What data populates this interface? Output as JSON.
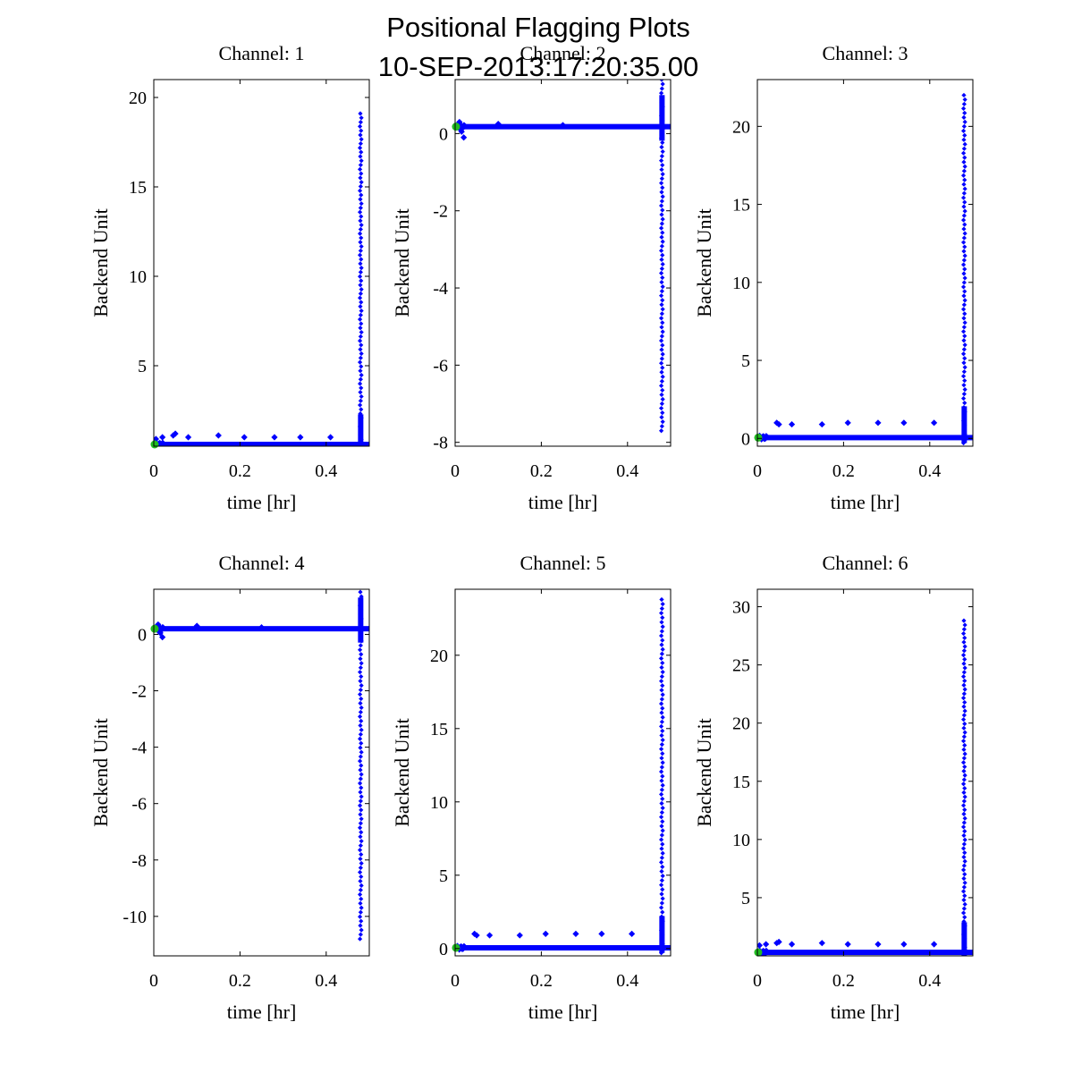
{
  "figure": {
    "title_line1": "Positional Flagging Plots",
    "title_line2": "10-SEP-2013:17:20:35.00"
  },
  "colors": {
    "data": "#0000ff",
    "start_marker": "#22bb22",
    "axes": "#000000"
  },
  "chart_data": [
    {
      "type": "scatter",
      "title": "Channel: 1",
      "xlabel": "time [hr]",
      "ylabel": "Backend Unit",
      "xlim": [
        0,
        0.5
      ],
      "ylim": [
        0.5,
        21
      ],
      "xticks": [
        0,
        0.2,
        0.4
      ],
      "xtick_labels": [
        "0",
        "0.2",
        "0.4"
      ],
      "yticks": [
        5,
        10,
        15,
        20
      ],
      "ytick_labels": [
        "5",
        "10",
        "15",
        "20"
      ],
      "baseline": 0.6,
      "spike_x": 0.48,
      "spike_min": 0.4,
      "spike_max": 19.1,
      "outliers": [
        [
          0.005,
          0.9
        ],
        [
          0.02,
          1.0
        ],
        [
          0.045,
          1.1
        ],
        [
          0.05,
          1.2
        ],
        [
          0.08,
          1.0
        ],
        [
          0.15,
          1.1
        ],
        [
          0.21,
          1.0
        ],
        [
          0.28,
          1.0
        ],
        [
          0.34,
          1.0
        ],
        [
          0.41,
          1.0
        ]
      ]
    },
    {
      "type": "scatter",
      "title": "Channel: 2",
      "xlabel": "time [hr]",
      "ylabel": "Backend Unit",
      "xlim": [
        0,
        0.5
      ],
      "ylim": [
        -8.1,
        1.4
      ],
      "xticks": [
        0,
        0.2,
        0.4
      ],
      "xtick_labels": [
        "0",
        "0.2",
        "0.4"
      ],
      "yticks": [
        0,
        -2,
        -4,
        -6,
        -8
      ],
      "ytick_labels": [
        "0",
        "-2",
        "-4",
        "-6",
        "-8"
      ],
      "baseline": 0.18,
      "spike_x": 0.48,
      "spike_min": -7.7,
      "spike_max": 1.4,
      "outliers": [
        [
          0.01,
          0.3
        ],
        [
          0.015,
          0.05
        ],
        [
          0.02,
          -0.1
        ],
        [
          0.1,
          0.25
        ],
        [
          0.25,
          0.22
        ]
      ]
    },
    {
      "type": "scatter",
      "title": "Channel: 3",
      "xlabel": "time [hr]",
      "ylabel": "Backend Unit",
      "xlim": [
        0,
        0.5
      ],
      "ylim": [
        -0.5,
        23
      ],
      "xticks": [
        0,
        0.2,
        0.4
      ],
      "xtick_labels": [
        "0",
        "0.2",
        "0.4"
      ],
      "yticks": [
        0,
        5,
        10,
        15,
        20
      ],
      "ytick_labels": [
        "0",
        "5",
        "10",
        "15",
        "20"
      ],
      "baseline": 0.05,
      "spike_x": 0.48,
      "spike_min": -0.3,
      "spike_max": 22.0,
      "outliers": [
        [
          0.045,
          1.0
        ],
        [
          0.05,
          0.9
        ],
        [
          0.08,
          0.9
        ],
        [
          0.15,
          0.9
        ],
        [
          0.21,
          1.0
        ],
        [
          0.28,
          1.0
        ],
        [
          0.34,
          1.0
        ],
        [
          0.41,
          1.0
        ]
      ]
    },
    {
      "type": "scatter",
      "title": "Channel: 4",
      "xlabel": "time [hr]",
      "ylabel": "Backend Unit",
      "xlim": [
        0,
        0.5
      ],
      "ylim": [
        -11.4,
        1.6
      ],
      "xticks": [
        0,
        0.2,
        0.4
      ],
      "xtick_labels": [
        "0",
        "0.2",
        "0.4"
      ],
      "yticks": [
        0,
        -2,
        -4,
        -6,
        -8,
        -10
      ],
      "ytick_labels": [
        "0",
        "-2",
        "-4",
        "-6",
        "-8",
        "-10"
      ],
      "baseline": 0.2,
      "spike_x": 0.48,
      "spike_min": -10.8,
      "spike_max": 1.5,
      "outliers": [
        [
          0.01,
          0.35
        ],
        [
          0.015,
          0.05
        ],
        [
          0.02,
          -0.1
        ],
        [
          0.1,
          0.3
        ],
        [
          0.25,
          0.25
        ]
      ]
    },
    {
      "type": "scatter",
      "title": "Channel: 5",
      "xlabel": "time [hr]",
      "ylabel": "Backend Unit",
      "xlim": [
        0,
        0.5
      ],
      "ylim": [
        -0.5,
        24.5
      ],
      "xticks": [
        0,
        0.2,
        0.4
      ],
      "xtick_labels": [
        "0",
        "0.2",
        "0.4"
      ],
      "yticks": [
        0,
        5,
        10,
        15,
        20
      ],
      "ytick_labels": [
        "0",
        "5",
        "10",
        "15",
        "20"
      ],
      "baseline": 0.05,
      "spike_x": 0.48,
      "spike_min": -0.3,
      "spike_max": 23.8,
      "outliers": [
        [
          0.045,
          1.0
        ],
        [
          0.05,
          0.9
        ],
        [
          0.08,
          0.9
        ],
        [
          0.15,
          0.9
        ],
        [
          0.21,
          1.0
        ],
        [
          0.28,
          1.0
        ],
        [
          0.34,
          1.0
        ],
        [
          0.41,
          1.0
        ]
      ]
    },
    {
      "type": "scatter",
      "title": "Channel: 6",
      "xlabel": "time [hr]",
      "ylabel": "Backend Unit",
      "xlim": [
        0,
        0.5
      ],
      "ylim": [
        0,
        31.5
      ],
      "xticks": [
        0,
        0.2,
        0.4
      ],
      "xtick_labels": [
        "0",
        "0.2",
        "0.4"
      ],
      "yticks": [
        5,
        10,
        15,
        20,
        25,
        30
      ],
      "ytick_labels": [
        "5",
        "10",
        "15",
        "20",
        "25",
        "30"
      ],
      "baseline": 0.3,
      "spike_x": 0.48,
      "spike_min": 0.0,
      "spike_max": 28.8,
      "outliers": [
        [
          0.005,
          0.9
        ],
        [
          0.02,
          1.0
        ],
        [
          0.045,
          1.1
        ],
        [
          0.05,
          1.2
        ],
        [
          0.08,
          1.0
        ],
        [
          0.15,
          1.1
        ],
        [
          0.21,
          1.0
        ],
        [
          0.28,
          1.0
        ],
        [
          0.34,
          1.0
        ],
        [
          0.41,
          1.0
        ]
      ]
    }
  ]
}
